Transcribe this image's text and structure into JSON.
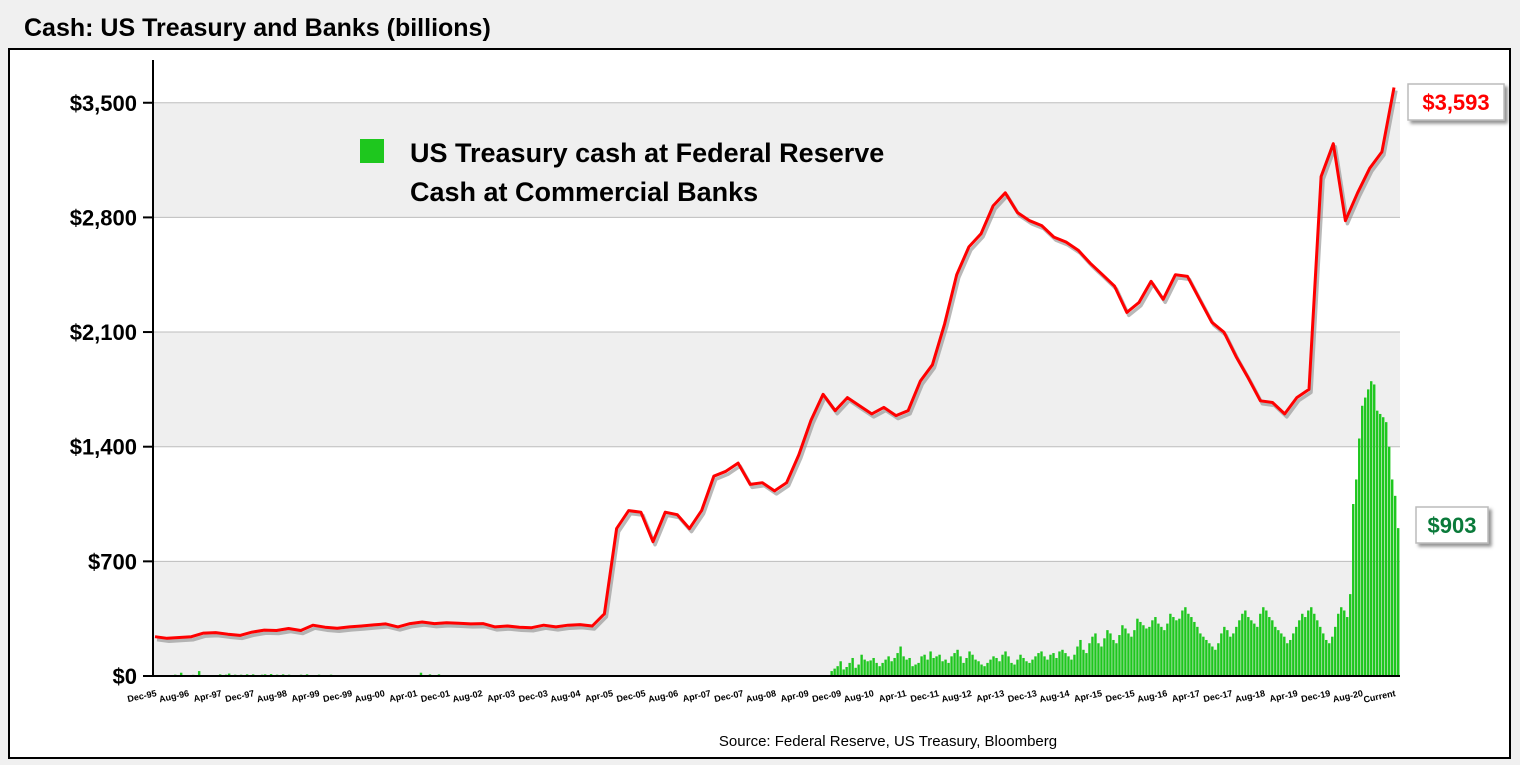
{
  "title": "Cash: US Treasury and Banks (billions)",
  "source": "Source: Federal Reserve, US Treasury, Bloomberg",
  "colors": {
    "treasury": "#1ec71e",
    "banks": "#ff0000",
    "plot_bg": "#efefef",
    "callout_green": "#0a7a3a",
    "callout_red": "#ff0000"
  },
  "chart_data": {
    "type": "bar+line",
    "title": "Cash: US Treasury and Banks (billions)",
    "y_ticks": [
      "$0",
      "$700",
      "$1,400",
      "$2,100",
      "$2,800",
      "$3,500"
    ],
    "ylim": [
      0,
      3700
    ],
    "x_ticks": [
      "Dec-95",
      "Aug-96",
      "Apr-97",
      "Dec-97",
      "Aug-98",
      "Apr-99",
      "Dec-99",
      "Aug-00",
      "Apr-01",
      "Dec-01",
      "Aug-02",
      "Apr-03",
      "Dec-03",
      "Aug-04",
      "Apr-05",
      "Dec-05",
      "Aug-06",
      "Apr-07",
      "Dec-07",
      "Aug-08",
      "Apr-09",
      "Dec-09",
      "Aug-10",
      "Apr-11",
      "Dec-11",
      "Aug-12",
      "Apr-13",
      "Dec-13",
      "Aug-14",
      "Apr-15",
      "Dec-15",
      "Aug-16",
      "Apr-17",
      "Dec-17",
      "Aug-18",
      "Apr-19",
      "Dec-19",
      "Aug-20",
      "Current"
    ],
    "legend": {
      "position": "top-left",
      "entries": [
        "US Treasury cash at Federal Reserve",
        "Cash at Commercial Banks"
      ]
    },
    "grid": true,
    "series": [
      {
        "name": "Cash at Commercial Banks",
        "type": "line",
        "points": [
          [
            0,
            240
          ],
          [
            1,
            230
          ],
          [
            2,
            235
          ],
          [
            3,
            240
          ],
          [
            4,
            262
          ],
          [
            5,
            265
          ],
          [
            6,
            255
          ],
          [
            7,
            248
          ],
          [
            8,
            268
          ],
          [
            9,
            280
          ],
          [
            10,
            278
          ],
          [
            11,
            290
          ],
          [
            12,
            278
          ],
          [
            13,
            310
          ],
          [
            14,
            298
          ],
          [
            15,
            292
          ],
          [
            16,
            300
          ],
          [
            17,
            305
          ],
          [
            18,
            312
          ],
          [
            19,
            318
          ],
          [
            20,
            300
          ],
          [
            21,
            320
          ],
          [
            22,
            330
          ],
          [
            23,
            320
          ],
          [
            24,
            325
          ],
          [
            25,
            322
          ],
          [
            26,
            318
          ],
          [
            27,
            320
          ],
          [
            28,
            300
          ],
          [
            29,
            305
          ],
          [
            30,
            298
          ],
          [
            31,
            295
          ],
          [
            32,
            310
          ],
          [
            33,
            300
          ],
          [
            34,
            310
          ],
          [
            35,
            314
          ],
          [
            36,
            305
          ],
          [
            37,
            380
          ],
          [
            38,
            900
          ],
          [
            39,
            1010
          ],
          [
            40,
            1000
          ],
          [
            41,
            820
          ],
          [
            42,
            1000
          ],
          [
            43,
            985
          ],
          [
            44,
            900
          ],
          [
            45,
            1010
          ],
          [
            46,
            1220
          ],
          [
            47,
            1250
          ],
          [
            48,
            1300
          ],
          [
            49,
            1170
          ],
          [
            50,
            1180
          ],
          [
            51,
            1130
          ],
          [
            52,
            1180
          ],
          [
            53,
            1350
          ],
          [
            54,
            1560
          ],
          [
            55,
            1720
          ],
          [
            56,
            1620
          ],
          [
            57,
            1700
          ],
          [
            58,
            1650
          ],
          [
            59,
            1600
          ],
          [
            60,
            1640
          ],
          [
            61,
            1590
          ],
          [
            62,
            1620
          ],
          [
            63,
            1800
          ],
          [
            64,
            1900
          ],
          [
            65,
            2150
          ],
          [
            66,
            2450
          ],
          [
            67,
            2620
          ],
          [
            68,
            2700
          ],
          [
            69,
            2870
          ],
          [
            70,
            2950
          ],
          [
            71,
            2830
          ],
          [
            72,
            2780
          ],
          [
            73,
            2750
          ],
          [
            74,
            2680
          ],
          [
            75,
            2650
          ],
          [
            76,
            2600
          ],
          [
            77,
            2520
          ],
          [
            78,
            2450
          ],
          [
            79,
            2380
          ],
          [
            80,
            2220
          ],
          [
            81,
            2280
          ],
          [
            82,
            2410
          ],
          [
            83,
            2300
          ],
          [
            84,
            2450
          ],
          [
            85,
            2440
          ],
          [
            86,
            2300
          ],
          [
            87,
            2160
          ],
          [
            88,
            2100
          ],
          [
            89,
            1950
          ],
          [
            90,
            1820
          ],
          [
            91,
            1680
          ],
          [
            92,
            1670
          ],
          [
            93,
            1600
          ],
          [
            94,
            1700
          ],
          [
            95,
            1750
          ],
          [
            96,
            3050
          ],
          [
            97,
            3250
          ],
          [
            98,
            2780
          ],
          [
            99,
            2950
          ],
          [
            100,
            3100
          ],
          [
            101,
            3200
          ],
          [
            102,
            3593
          ]
        ]
      },
      {
        "name": "US Treasury cash at Federal Reserve",
        "type": "bar",
        "values": [
          5,
          5,
          5,
          5,
          5,
          6,
          5,
          8,
          5,
          20,
          5,
          5,
          5,
          7,
          5,
          30,
          5,
          5,
          5,
          5,
          5,
          5,
          10,
          5,
          8,
          15,
          5,
          8,
          5,
          8,
          5,
          10,
          5,
          10,
          5,
          5,
          8,
          10,
          5,
          12,
          5,
          8,
          5,
          10,
          5,
          8,
          5,
          6,
          5,
          8,
          5,
          10,
          5,
          5,
          5,
          8,
          5,
          6,
          5,
          8,
          5,
          5,
          5,
          6,
          5,
          5,
          5,
          5,
          5,
          5,
          5,
          6,
          5,
          5,
          5,
          5,
          5,
          5,
          5,
          5,
          5,
          5,
          5,
          5,
          5,
          5,
          5,
          5,
          5,
          20,
          5,
          5,
          10,
          5,
          5,
          10,
          5,
          5,
          5,
          5,
          5,
          5,
          5,
          5,
          5,
          5,
          5,
          5,
          5,
          5,
          5,
          5,
          5,
          5,
          5,
          5,
          5,
          5,
          5,
          5,
          5,
          5,
          5,
          5,
          5,
          5,
          5,
          5,
          5,
          5,
          5,
          5,
          5,
          5,
          5,
          5,
          5,
          5,
          5,
          5,
          5,
          5,
          5,
          5,
          5,
          5,
          5,
          5,
          5,
          5,
          5,
          5,
          5,
          5,
          5,
          5,
          5,
          5,
          5,
          5,
          5,
          5,
          5,
          5,
          5,
          5,
          5,
          5,
          5,
          5,
          5,
          5,
          5,
          5,
          5,
          5,
          5,
          5,
          5,
          5,
          5,
          5,
          5,
          5,
          5,
          5,
          5,
          5,
          5,
          5,
          5,
          5,
          5,
          5,
          5,
          5,
          5,
          5,
          5,
          5,
          5,
          5,
          5,
          5,
          5,
          5,
          5,
          5,
          5,
          5,
          5,
          5,
          5,
          5,
          5,
          5,
          5,
          5,
          5,
          5,
          5,
          5,
          5,
          5,
          5,
          5,
          30,
          45,
          60,
          90,
          40,
          55,
          80,
          110,
          50,
          70,
          130,
          100,
          90,
          95,
          110,
          80,
          60,
          80,
          100,
          120,
          90,
          110,
          140,
          180,
          120,
          100,
          110,
          60,
          70,
          80,
          120,
          130,
          100,
          150,
          110,
          120,
          130,
          90,
          100,
          80,
          120,
          140,
          160,
          120,
          80,
          110,
          150,
          130,
          100,
          90,
          70,
          60,
          80,
          100,
          120,
          110,
          90,
          130,
          150,
          120,
          80,
          70,
          100,
          130,
          110,
          90,
          80,
          100,
          120,
          140,
          150,
          120,
          100,
          130,
          140,
          110,
          150,
          160,
          140,
          120,
          100,
          130,
          180,
          220,
          160,
          140,
          200,
          240,
          260,
          200,
          180,
          230,
          280,
          260,
          220,
          200,
          250,
          310,
          290,
          260,
          240,
          280,
          350,
          330,
          310,
          290,
          300,
          340,
          360,
          320,
          300,
          280,
          320,
          380,
          360,
          340,
          350,
          400,
          420,
          380,
          360,
          330,
          300,
          260,
          240,
          220,
          200,
          180,
          160,
          200,
          260,
          300,
          280,
          240,
          260,
          300,
          340,
          380,
          400,
          360,
          340,
          320,
          300,
          380,
          420,
          400,
          360,
          340,
          300,
          280,
          260,
          240,
          200,
          220,
          260,
          300,
          340,
          380,
          360,
          400,
          420,
          380,
          340,
          300,
          260,
          220,
          200,
          240,
          300,
          380,
          420,
          400,
          360,
          500,
          1050,
          1200,
          1450,
          1650,
          1700,
          1750,
          1800,
          1780,
          1620,
          1600,
          1580,
          1550,
          1400,
          1200,
          1100,
          903
        ]
      }
    ],
    "callouts": [
      {
        "series": "Cash at Commercial Banks",
        "label": "$3,593"
      },
      {
        "series": "US Treasury cash at Federal Reserve",
        "label": "$903"
      }
    ]
  }
}
